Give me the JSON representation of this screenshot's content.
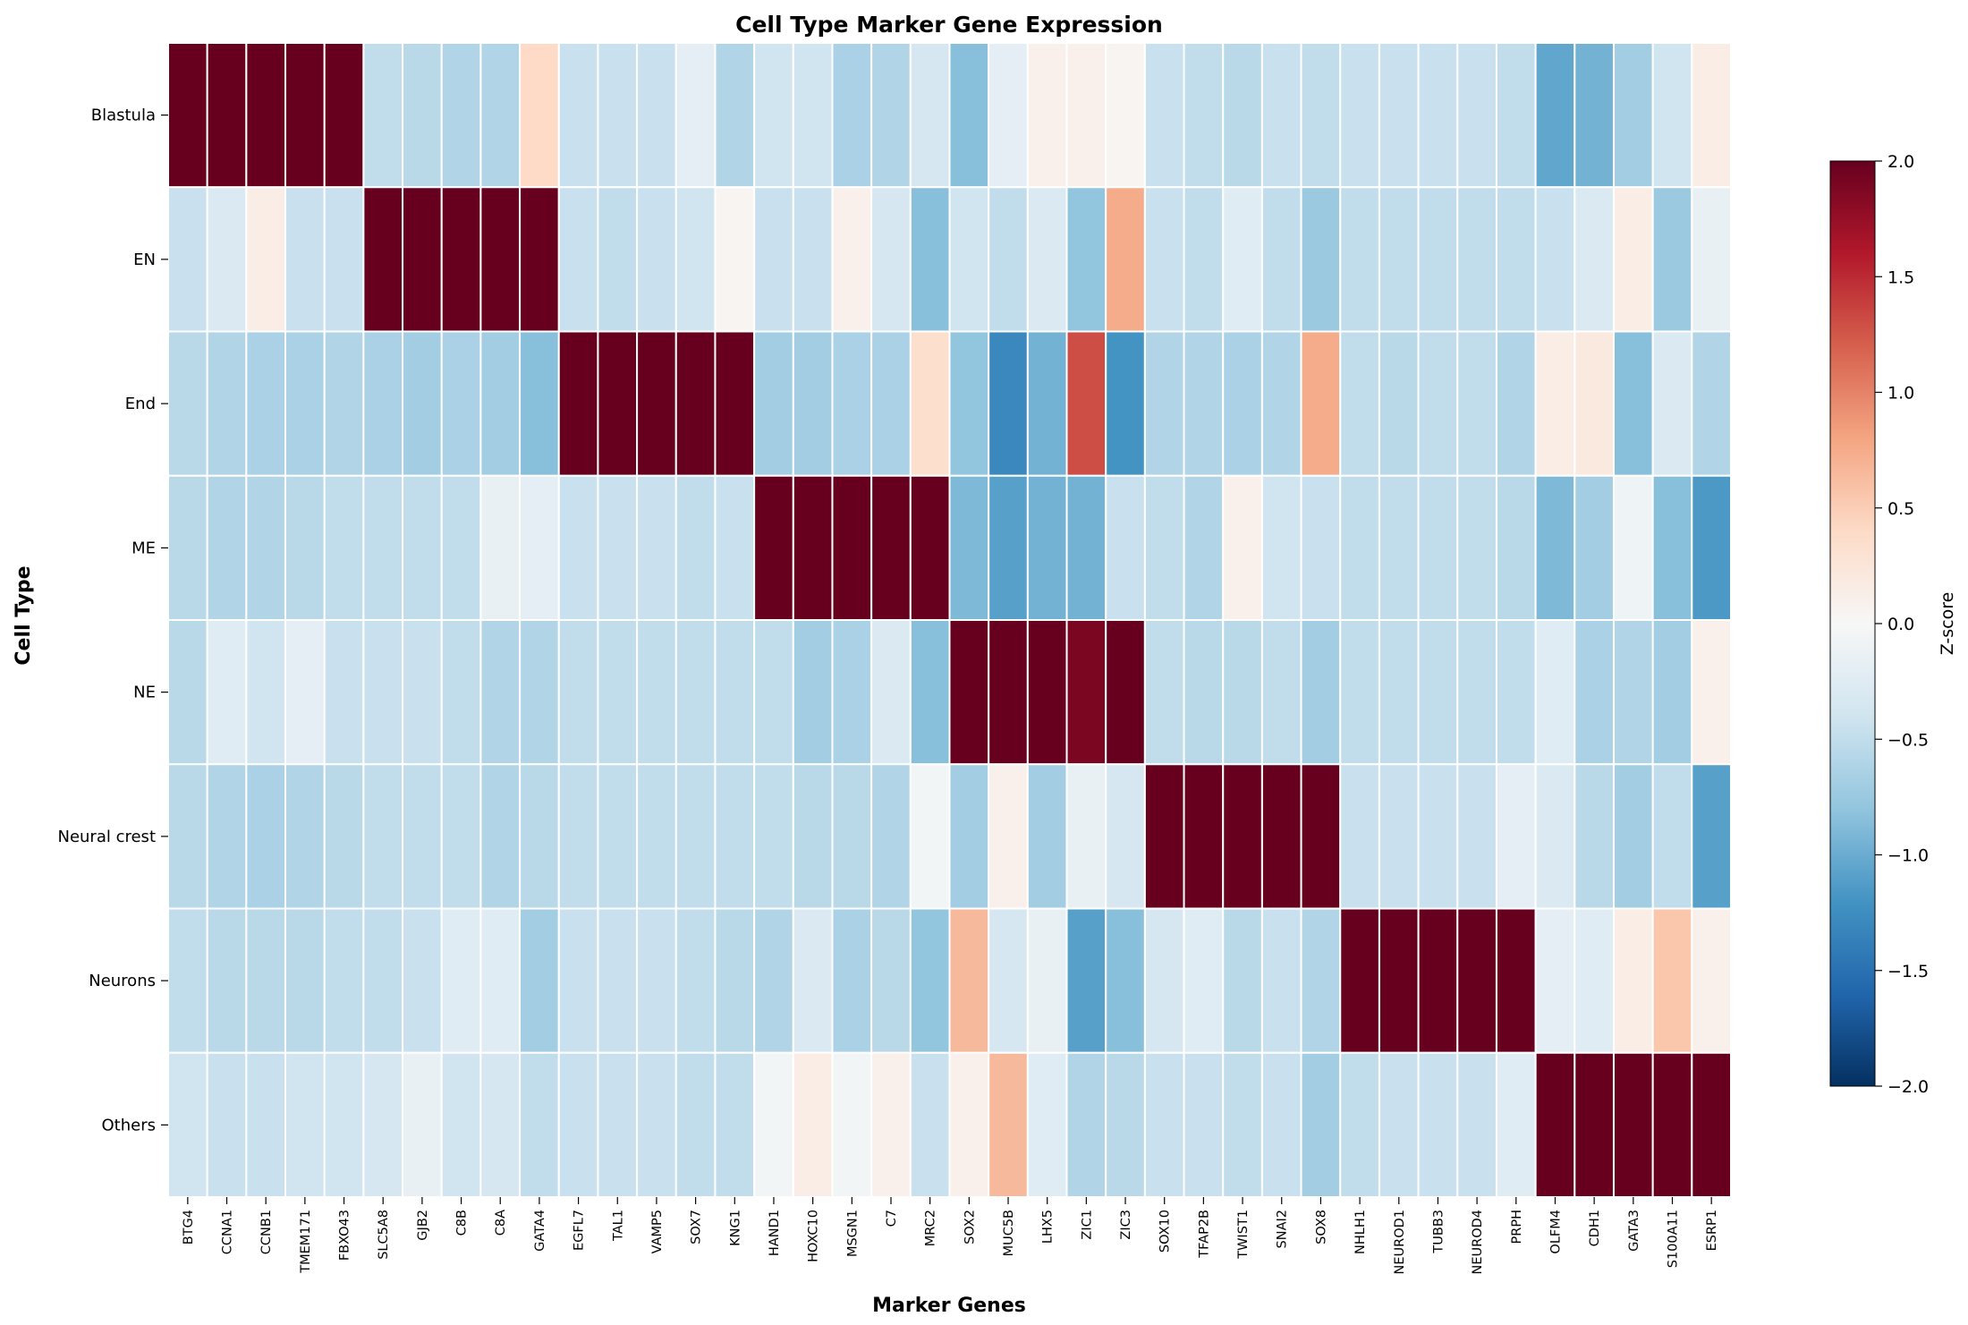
{
  "chart_data": {
    "type": "heatmap",
    "title": "Cell Type Marker Gene Expression",
    "xlabel": "Marker Genes",
    "ylabel": "Cell Type",
    "colorbar_label": "Z-score",
    "colormap": "RdBu_r",
    "vmin": -2.0,
    "vmax": 2.0,
    "colorbar_ticks": [
      "2.0",
      "1.5",
      "1.0",
      "0.5",
      "0.0",
      "−0.5",
      "−1.0",
      "−1.5",
      "−2.0"
    ],
    "colorbar_tick_values": [
      2.0,
      1.5,
      1.0,
      0.5,
      0.0,
      -0.5,
      -1.0,
      -1.5,
      -2.0
    ],
    "rows": [
      "Blastula",
      "EN",
      "End",
      "ME",
      "NE",
      "Neural crest",
      "Neurons",
      "Others"
    ],
    "columns": [
      "BTG4",
      "CCNA1",
      "CCNB1",
      "TMEM171",
      "FBXO43",
      "SLC5A8",
      "GJB2",
      "C8B",
      "C8A",
      "GATA4",
      "EGFL7",
      "TAL1",
      "VAMP5",
      "SOX7",
      "KNG1",
      "HAND1",
      "HOXC10",
      "MSGN1",
      "C7",
      "MRC2",
      "SOX2",
      "MUC5B",
      "LHX5",
      "ZIC1",
      "ZIC3",
      "SOX10",
      "TFAP2B",
      "TWIST1",
      "SNAI2",
      "SOX8",
      "NHLH1",
      "NEUROD1",
      "TUBB3",
      "NEUROD4",
      "PRPH",
      "OLFM4",
      "CDH1",
      "GATA3",
      "S100A11",
      "ESRP1"
    ],
    "values": [
      [
        2.5,
        2.5,
        2.5,
        2.5,
        2.5,
        -0.5,
        -0.55,
        -0.6,
        -0.6,
        0.4,
        -0.45,
        -0.45,
        -0.45,
        -0.2,
        -0.6,
        -0.4,
        -0.4,
        -0.65,
        -0.6,
        -0.35,
        -0.85,
        -0.2,
        0.1,
        0.1,
        0.05,
        -0.45,
        -0.5,
        -0.55,
        -0.45,
        -0.5,
        -0.45,
        -0.45,
        -0.45,
        -0.45,
        -0.5,
        -1.05,
        -0.95,
        -0.7,
        -0.4,
        0.15
      ],
      [
        -0.45,
        -0.3,
        0.15,
        -0.45,
        -0.45,
        2.5,
        2.5,
        2.5,
        2.5,
        2.5,
        -0.45,
        -0.5,
        -0.45,
        -0.4,
        0.05,
        -0.45,
        -0.45,
        0.1,
        -0.35,
        -0.85,
        -0.4,
        -0.5,
        -0.3,
        -0.8,
        0.75,
        -0.45,
        -0.5,
        -0.25,
        -0.5,
        -0.75,
        -0.5,
        -0.5,
        -0.5,
        -0.5,
        -0.5,
        -0.45,
        -0.3,
        0.15,
        -0.75,
        -0.15
      ],
      [
        -0.55,
        -0.6,
        -0.65,
        -0.65,
        -0.6,
        -0.65,
        -0.7,
        -0.65,
        -0.7,
        -0.85,
        2.5,
        2.5,
        2.5,
        2.5,
        2.5,
        -0.7,
        -0.7,
        -0.65,
        -0.65,
        0.35,
        -0.8,
        -1.3,
        -0.95,
        1.3,
        -1.2,
        -0.6,
        -0.6,
        -0.65,
        -0.6,
        0.75,
        -0.5,
        -0.55,
        -0.5,
        -0.5,
        -0.6,
        0.15,
        0.2,
        -0.85,
        -0.3,
        -0.6
      ],
      [
        -0.55,
        -0.6,
        -0.6,
        -0.55,
        -0.5,
        -0.5,
        -0.5,
        -0.5,
        -0.15,
        -0.2,
        -0.45,
        -0.45,
        -0.45,
        -0.5,
        -0.45,
        2.5,
        2.5,
        2.5,
        2.5,
        2.5,
        -0.9,
        -1.1,
        -0.95,
        -0.95,
        -0.45,
        -0.5,
        -0.6,
        0.1,
        -0.4,
        -0.45,
        -0.5,
        -0.5,
        -0.5,
        -0.5,
        -0.55,
        -0.9,
        -0.7,
        -0.1,
        -0.85,
        -1.15
      ],
      [
        -0.55,
        -0.25,
        -0.4,
        -0.2,
        -0.45,
        -0.45,
        -0.45,
        -0.5,
        -0.6,
        -0.6,
        -0.5,
        -0.5,
        -0.5,
        -0.5,
        -0.5,
        -0.5,
        -0.7,
        -0.65,
        -0.3,
        -0.85,
        2.5,
        2.5,
        2.5,
        1.9,
        2.5,
        -0.5,
        -0.55,
        -0.55,
        -0.5,
        -0.7,
        -0.5,
        -0.5,
        -0.5,
        -0.5,
        -0.5,
        -0.25,
        -0.65,
        -0.6,
        -0.7,
        0.1
      ],
      [
        -0.55,
        -0.6,
        -0.65,
        -0.6,
        -0.55,
        -0.5,
        -0.5,
        -0.5,
        -0.6,
        -0.55,
        -0.5,
        -0.5,
        -0.5,
        -0.5,
        -0.5,
        -0.5,
        -0.55,
        -0.55,
        -0.6,
        -0.05,
        -0.7,
        0.1,
        -0.7,
        -0.15,
        -0.35,
        2.5,
        2.5,
        2.5,
        2.5,
        2.5,
        -0.45,
        -0.45,
        -0.45,
        -0.45,
        -0.2,
        -0.3,
        -0.55,
        -0.7,
        -0.5,
        -1.1
      ],
      [
        -0.5,
        -0.55,
        -0.55,
        -0.55,
        -0.5,
        -0.5,
        -0.45,
        -0.25,
        -0.25,
        -0.7,
        -0.45,
        -0.45,
        -0.45,
        -0.5,
        -0.55,
        -0.6,
        -0.3,
        -0.65,
        -0.55,
        -0.8,
        0.65,
        -0.35,
        -0.15,
        -1.1,
        -0.85,
        -0.35,
        -0.25,
        -0.55,
        -0.45,
        -0.6,
        2.5,
        2.5,
        2.5,
        2.5,
        2.5,
        -0.2,
        -0.25,
        0.15,
        0.55,
        0.1
      ],
      [
        -0.4,
        -0.45,
        -0.45,
        -0.4,
        -0.4,
        -0.35,
        -0.15,
        -0.4,
        -0.35,
        -0.5,
        -0.45,
        -0.45,
        -0.45,
        -0.5,
        -0.5,
        -0.05,
        0.15,
        -0.05,
        0.1,
        -0.45,
        0.1,
        0.65,
        -0.25,
        -0.6,
        -0.55,
        -0.45,
        -0.45,
        -0.5,
        -0.45,
        -0.7,
        -0.5,
        -0.45,
        -0.45,
        -0.45,
        -0.25,
        2.5,
        2.5,
        2.5,
        2.5,
        2.5
      ]
    ]
  }
}
